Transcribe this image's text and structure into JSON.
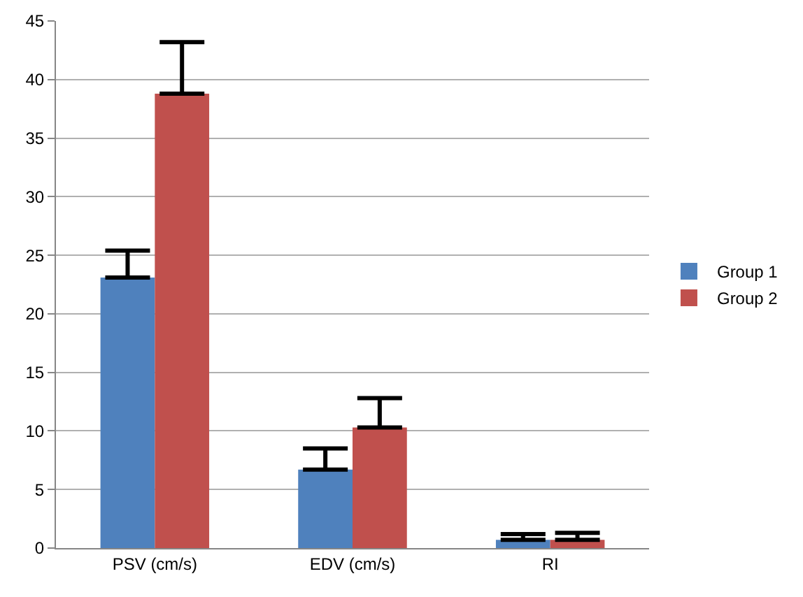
{
  "chart_data": {
    "type": "bar",
    "categories": [
      "PSV (cm/s)",
      "EDV (cm/s)",
      "RI"
    ],
    "series": [
      {
        "name": "Group 1",
        "color": "#4f81bd",
        "values": [
          23.1,
          6.7,
          0.7
        ],
        "errors": [
          [
            23.1,
            25.4
          ],
          [
            6.7,
            8.5
          ],
          [
            0.7,
            1.2
          ]
        ]
      },
      {
        "name": "Group 2",
        "color": "#c0504d",
        "values": [
          38.8,
          10.3,
          0.7
        ],
        "errors": [
          [
            38.8,
            43.2
          ],
          [
            10.3,
            12.8
          ],
          [
            0.7,
            1.3
          ]
        ]
      }
    ],
    "ylim": [
      0,
      45
    ],
    "yticks": [
      0,
      5,
      10,
      15,
      20,
      25,
      30,
      35,
      40,
      45
    ],
    "grid": "y",
    "legend": "right"
  }
}
